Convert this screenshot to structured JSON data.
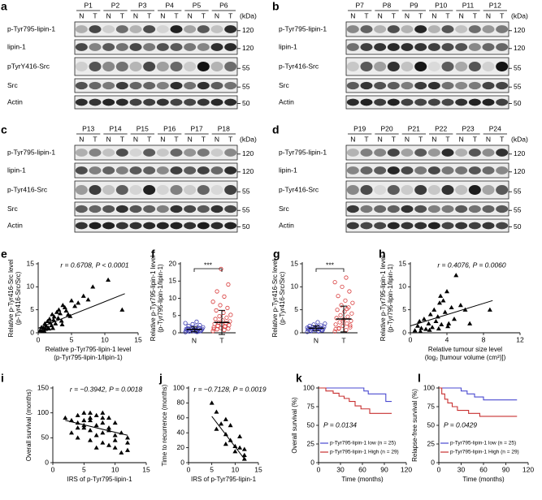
{
  "blots": [
    {
      "panel": "a",
      "unit": "(kDa)",
      "lanes": [
        "N",
        "T"
      ],
      "patients": [
        "P1",
        "P2",
        "P3",
        "P4",
        "P5",
        "P6"
      ],
      "rows": [
        {
          "label": "p-Tyr795-lipin-1",
          "marker": 120
        },
        {
          "label": "lipin-1",
          "marker": 120
        },
        {
          "label": "pTyrY416-Src",
          "marker": 55
        },
        {
          "label": "Src",
          "marker": 55
        },
        {
          "label": "Actin",
          "marker": 50
        }
      ]
    },
    {
      "panel": "b",
      "unit": "(kDa)",
      "lanes": [
        "N",
        "T"
      ],
      "patients": [
        "P7",
        "P8",
        "P9",
        "P10",
        "P11",
        "P12"
      ],
      "rows": [
        {
          "label": "p-Tyr795-lipin-1",
          "marker": 120
        },
        {
          "label": "lipin-1",
          "marker": 120
        },
        {
          "label": "p-Tyr416-Src",
          "marker": 55
        },
        {
          "label": "Src",
          "marker": 55
        },
        {
          "label": "Actin",
          "marker": 50
        }
      ]
    },
    {
      "panel": "c",
      "unit": "(kDa)",
      "lanes": [
        "N",
        "T"
      ],
      "patients": [
        "P13",
        "P14",
        "P15",
        "P16",
        "P17",
        "P18"
      ],
      "rows": [
        {
          "label": "p-Tyr795-lipin-1",
          "marker": 120
        },
        {
          "label": "lipin-1",
          "marker": 120
        },
        {
          "label": "p-Tyr416-Src",
          "marker": 55
        },
        {
          "label": "Src",
          "marker": 55
        },
        {
          "label": "Actin",
          "marker": 50
        }
      ]
    },
    {
      "panel": "d",
      "unit": "(kDa)",
      "lanes": [
        "N",
        "T"
      ],
      "patients": [
        "P19",
        "P20",
        "P21",
        "P22",
        "P23",
        "P24"
      ],
      "rows": [
        {
          "label": "p-Tyr795-lipin-1",
          "marker": 120
        },
        {
          "label": "lipin-1",
          "marker": 120
        },
        {
          "label": "p-Tyr416-Src",
          "marker": 55
        },
        {
          "label": "Src",
          "marker": 55
        },
        {
          "label": "Actin",
          "marker": 50
        }
      ]
    }
  ],
  "chart_data": [
    {
      "type": "scatter",
      "panel": "e",
      "annotation": "r = 0.6708,   P < 0.0001",
      "xlabel": [
        "Relative p-Tyr795-lipin-1 level",
        "(p-Tyr795-lipin-1/lipin-1)"
      ],
      "ylabel": [
        "Relative p-Tyr416-Src level",
        "(p-Tyr416-Src/Src)"
      ],
      "xlim": [
        0,
        15
      ],
      "xticks": [
        0,
        5,
        10,
        15
      ],
      "ylim": [
        0,
        15
      ],
      "yticks": [
        0,
        5,
        10,
        15
      ],
      "x": [
        0.3,
        0.5,
        0.6,
        0.8,
        1.0,
        1.1,
        1.2,
        1.4,
        1.5,
        1.7,
        1.8,
        2.0,
        2.1,
        2.3,
        2.4,
        2.6,
        2.8,
        3.0,
        3.1,
        3.3,
        3.5,
        3.7,
        4.0,
        4.2,
        4.5,
        4.8,
        5.0,
        5.5,
        6.0,
        6.8,
        7.5,
        8.2,
        10.5,
        12.6,
        0.9,
        1.6,
        2.2,
        3.6
      ],
      "y": [
        0.5,
        1.2,
        0.3,
        1.0,
        2.0,
        0.8,
        1.5,
        2.5,
        1.1,
        3.0,
        2.2,
        1.6,
        4.0,
        2.8,
        3.5,
        2.0,
        4.5,
        3.2,
        5.0,
        4.2,
        2.6,
        6.0,
        5.5,
        4.8,
        4.0,
        3.6,
        7.0,
        5.8,
        6.5,
        8.0,
        7.2,
        10.0,
        11.5,
        5.0,
        0.4,
        0.9,
        1.0,
        1.8
      ],
      "fit": {
        "x": [
          0,
          13
        ],
        "y": [
          1,
          8.5
        ]
      }
    },
    {
      "type": "dot",
      "panel": "f",
      "significance": "***",
      "ylabel": [
        "Relative p-Tyr795-lipin-1 level",
        "(p-Tyr795-lipin-1/lipin-1)"
      ],
      "ylim": [
        0,
        20
      ],
      "yticks": [
        0,
        5,
        10,
        15,
        20
      ],
      "categories": [
        "N",
        "T"
      ],
      "colors": [
        "#3a3ab0",
        "#d83a3a"
      ],
      "values": [
        [
          0.2,
          0.3,
          0.4,
          0.5,
          0.5,
          0.6,
          0.7,
          0.7,
          0.8,
          0.8,
          0.9,
          1.0,
          1.0,
          1.1,
          1.2,
          1.3,
          1.4,
          1.5,
          1.6,
          1.8,
          2.0,
          2.2,
          2.5,
          2.8,
          3.2,
          0.4,
          0.6,
          0.9,
          1.1,
          0.3
        ],
        [
          0.5,
          0.8,
          1.0,
          1.2,
          1.4,
          1.6,
          1.8,
          2.0,
          2.2,
          2.4,
          2.6,
          2.8,
          3.0,
          3.3,
          3.6,
          4.0,
          4.4,
          4.8,
          5.2,
          5.8,
          6.5,
          7.2,
          8.0,
          9.0,
          10.5,
          12.0,
          14.0,
          18.5,
          1.1,
          1.9
        ]
      ],
      "means": [
        1.0,
        3.0
      ],
      "sds": [
        0.7,
        3.5
      ]
    },
    {
      "type": "dot",
      "panel": "g",
      "significance": "***",
      "ylabel": [
        "Relative p-Tyr416-Src level",
        "(p-Tyr416-Src/Src)"
      ],
      "ylim": [
        0,
        15
      ],
      "yticks": [
        0,
        5,
        10,
        15
      ],
      "categories": [
        "N",
        "T"
      ],
      "colors": [
        "#3a3ab0",
        "#d83a3a"
      ],
      "values": [
        [
          0.2,
          0.3,
          0.4,
          0.5,
          0.6,
          0.7,
          0.8,
          0.8,
          0.9,
          1.0,
          1.0,
          1.1,
          1.2,
          1.3,
          1.4,
          1.5,
          1.6,
          1.8,
          2.0,
          2.3,
          0.5,
          0.6,
          0.9,
          1.1,
          0.4
        ],
        [
          0.3,
          0.6,
          0.9,
          1.2,
          1.5,
          1.8,
          2.0,
          2.3,
          2.6,
          2.9,
          3.2,
          3.5,
          3.8,
          4.2,
          4.6,
          5.0,
          5.5,
          6.0,
          6.5,
          7.0,
          8.0,
          9.0,
          10.0,
          11.0,
          12.0,
          1.0,
          1.6,
          2.5,
          0.8,
          5.2
        ]
      ],
      "means": [
        1.0,
        3.0
      ],
      "sds": [
        0.5,
        2.8
      ]
    },
    {
      "type": "scatter",
      "panel": "h",
      "annotation": "r = 0.4076,   P = 0.0060",
      "xlabel": [
        "Relative tumour size level",
        "(log₂ [tumour volume (cm³)])"
      ],
      "ylabel": [
        "Relative p-Tyr795-lipin-1 level",
        "(p-Tyr795-lipin-1/lipin-1)"
      ],
      "xlim": [
        0,
        12
      ],
      "xticks": [
        0,
        4,
        8,
        12
      ],
      "ylim": [
        0,
        15
      ],
      "yticks": [
        0,
        5,
        10,
        15
      ],
      "x": [
        0.5,
        0.8,
        1.0,
        1.2,
        1.5,
        1.7,
        2.0,
        2.2,
        2.4,
        2.6,
        2.8,
        3.0,
        3.2,
        3.4,
        3.6,
        3.8,
        4.0,
        4.2,
        4.5,
        4.8,
        5.0,
        5.5,
        6.0,
        6.5,
        8.7,
        1.1,
        2.1,
        3.1,
        4.1,
        3.3
      ],
      "y": [
        0.5,
        1.5,
        2.5,
        1.0,
        3.0,
        0.8,
        2.0,
        4.0,
        1.2,
        5.0,
        2.5,
        3.5,
        6.5,
        1.8,
        7.0,
        4.5,
        9.0,
        2.0,
        5.5,
        3.0,
        12.5,
        6.0,
        5.0,
        2.0,
        5.0,
        0.3,
        0.6,
        0.9,
        1.4,
        8.0
      ],
      "fit": {
        "x": [
          0,
          9
        ],
        "y": [
          1.5,
          7
        ]
      }
    },
    {
      "type": "scatter",
      "panel": "i",
      "annotation": "r = −0.3942,   P = 0.0018",
      "xlabel": [
        "IRS of p-Tyr795-lipin-1"
      ],
      "ylabel": [
        "Overall survival (months)"
      ],
      "xlim": [
        0,
        15
      ],
      "xticks": [
        0,
        5,
        10,
        15
      ],
      "ylim": [
        0,
        150
      ],
      "yticks": [
        0,
        50,
        100,
        150
      ],
      "x": [
        2,
        3,
        3,
        4,
        4,
        4,
        5,
        5,
        5,
        6,
        6,
        6,
        6,
        7,
        7,
        7,
        8,
        8,
        8,
        8,
        9,
        9,
        9,
        10,
        10,
        10,
        11,
        11,
        12,
        12,
        4,
        6,
        8,
        9,
        10,
        12,
        5,
        7
      ],
      "y": [
        90,
        85,
        60,
        80,
        95,
        50,
        75,
        100,
        70,
        90,
        65,
        45,
        85,
        95,
        55,
        75,
        100,
        60,
        40,
        80,
        70,
        35,
        90,
        55,
        30,
        80,
        20,
        60,
        50,
        40,
        70,
        100,
        90,
        65,
        45,
        25,
        85,
        30
      ],
      "fit": {
        "x": [
          2,
          12
        ],
        "y": [
          85,
          55
        ]
      }
    },
    {
      "type": "scatter",
      "panel": "j",
      "annotation": "r = −0.7128,   P = 0.0019",
      "xlabel": [
        "IRS of p-Tyr795-lipin-1"
      ],
      "ylabel": [
        "Time to recurrence (months)"
      ],
      "xlim": [
        0,
        15
      ],
      "xticks": [
        0,
        5,
        10,
        15
      ],
      "ylim": [
        0,
        100
      ],
      "yticks": [
        0,
        20,
        40,
        60,
        80,
        100
      ],
      "x": [
        5,
        6,
        6,
        7,
        8,
        8,
        8,
        9,
        9,
        10,
        10,
        11,
        12,
        12,
        12,
        11
      ],
      "y": [
        80,
        68,
        45,
        52,
        58,
        38,
        25,
        50,
        30,
        22,
        15,
        35,
        10,
        5,
        18,
        20
      ],
      "fit": {
        "x": [
          5,
          12
        ],
        "y": [
          62,
          5
        ]
      }
    },
    {
      "type": "survival",
      "panel": "k",
      "annotation": "P = 0.0134",
      "xlabel": [
        "Time (months)"
      ],
      "ylabel": [
        "Overall survival (%)"
      ],
      "xlim": [
        0,
        120
      ],
      "xticks": [
        0,
        30,
        60,
        90,
        120
      ],
      "ylim": [
        0,
        100
      ],
      "yticks": [
        0,
        25,
        50,
        75,
        100
      ],
      "series": [
        {
          "name": "p-Tyr795-lipin-1 low (n = 25)",
          "color": "#4a4ad0",
          "x": [
            0,
            62,
            62,
            68,
            68,
            92,
            92,
            100
          ],
          "y": [
            100,
            100,
            96,
            96,
            92,
            92,
            82,
            82
          ]
        },
        {
          "name": "p-Tyr795-lipin-1 High (n = 29)",
          "color": "#c83030",
          "x": [
            0,
            10,
            10,
            20,
            20,
            28,
            28,
            35,
            35,
            42,
            42,
            50,
            50,
            58,
            58,
            70,
            70,
            100
          ],
          "y": [
            100,
            100,
            96,
            96,
            93,
            93,
            89,
            89,
            86,
            86,
            82,
            82,
            76,
            76,
            72,
            72,
            66,
            66
          ]
        }
      ]
    },
    {
      "type": "survival",
      "panel": "l",
      "annotation": "P = 0.0429",
      "xlabel": [
        "Time (months)"
      ],
      "ylabel": [
        "Relapse-free survival (%)"
      ],
      "xlim": [
        0,
        120
      ],
      "xticks": [
        0,
        30,
        60,
        90,
        120
      ],
      "ylim": [
        0,
        100
      ],
      "yticks": [
        0,
        25,
        50,
        75,
        100
      ],
      "series": [
        {
          "name": "p-Tyr795-lipin-1 low (n = 25)",
          "color": "#4a4ad0",
          "x": [
            0,
            30,
            30,
            38,
            38,
            48,
            48,
            60,
            60,
            105
          ],
          "y": [
            100,
            100,
            96,
            96,
            92,
            92,
            88,
            88,
            84,
            84
          ]
        },
        {
          "name": "p-Tyr795-lipin-1 High (n = 29)",
          "color": "#c83030",
          "x": [
            0,
            4,
            4,
            8,
            8,
            12,
            12,
            18,
            18,
            25,
            25,
            40,
            40,
            55,
            55,
            105
          ],
          "y": [
            100,
            100,
            92,
            92,
            85,
            85,
            80,
            80,
            75,
            75,
            70,
            70,
            66,
            66,
            62,
            62
          ]
        }
      ]
    }
  ]
}
